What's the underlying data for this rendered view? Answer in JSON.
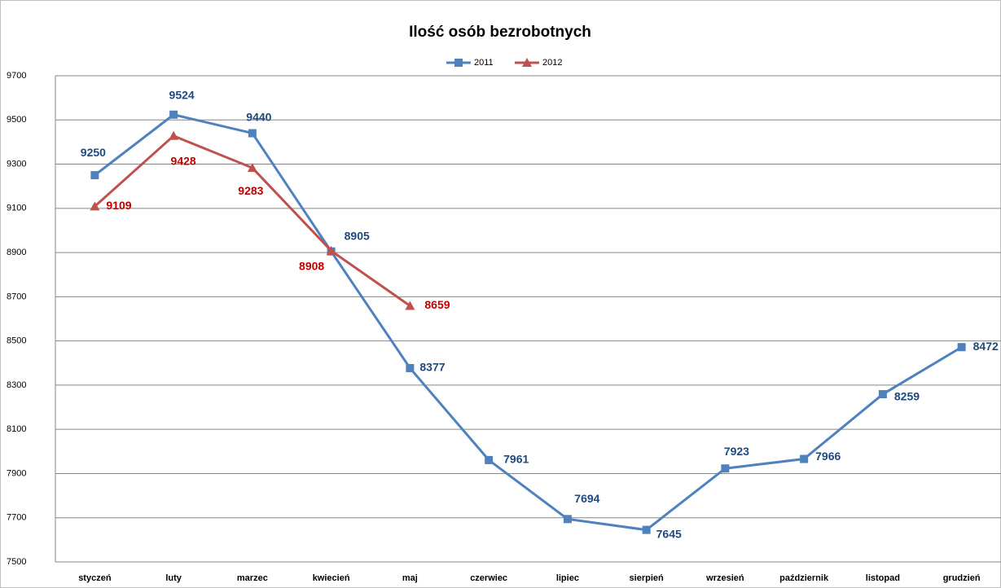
{
  "chart_data": {
    "type": "line",
    "title": "Ilość osób bezrobotnych",
    "categories": [
      "styczeń",
      "luty",
      "marzec",
      "kwiecień",
      "maj",
      "czerwiec",
      "lipiec",
      "sierpień",
      "wrzesień",
      "październik",
      "listopad",
      "grudzień"
    ],
    "series": [
      {
        "name": "2011",
        "color": "#4f81bd",
        "marker": "square",
        "label_color": "#1f497d",
        "values": [
          9250,
          9524,
          9440,
          8905,
          8377,
          7961,
          7694,
          7645,
          7923,
          7966,
          8259,
          8472
        ]
      },
      {
        "name": "2012",
        "color": "#c0504d",
        "marker": "triangle",
        "label_color": "#c00000",
        "values": [
          9109,
          9428,
          9283,
          8908,
          8659,
          null,
          null,
          null,
          null,
          null,
          null,
          null
        ]
      }
    ],
    "ylim": [
      7500,
      9700
    ],
    "yticks": [
      7500,
      7700,
      7900,
      8100,
      8300,
      8500,
      8700,
      8900,
      9100,
      9300,
      9500,
      9700
    ],
    "grid": true,
    "legend": "top"
  }
}
